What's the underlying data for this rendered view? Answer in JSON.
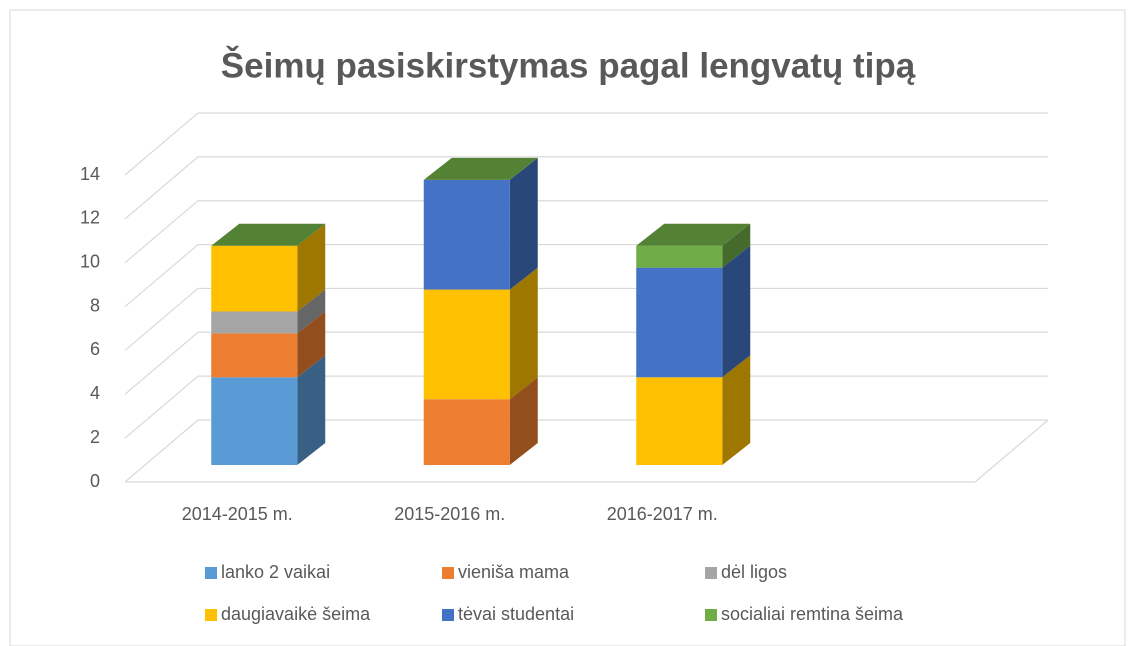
{
  "chart_data": {
    "type": "bar3d_stacked",
    "title": "Šeimų pasiskirstymas pagal lengvatų tipą",
    "categories": [
      "2014-2015 m.",
      "2015-2016 m.",
      "2016-2017 m."
    ],
    "series": [
      {
        "name": "lanko 2 vaikai",
        "color": "#5b9bd5",
        "values": [
          4,
          0,
          0
        ]
      },
      {
        "name": "vieniša mama",
        "color": "#ed7d31",
        "values": [
          2,
          3,
          0
        ]
      },
      {
        "name": "dėl ligos",
        "color": "#a5a5a5",
        "values": [
          1,
          0,
          0
        ]
      },
      {
        "name": "daugiavaikė šeima",
        "color": "#ffc000",
        "values": [
          3,
          5,
          4
        ]
      },
      {
        "name": "tėvai studentai",
        "color": "#4472c4",
        "values": [
          0,
          5,
          5
        ]
      },
      {
        "name": "socialiai remtina šeima",
        "color": "#70ad47",
        "values": [
          0,
          0,
          1
        ]
      }
    ],
    "ylim": [
      0,
      14
    ],
    "yticks": [
      0,
      2,
      4,
      6,
      8,
      10,
      12,
      14
    ],
    "grid": true,
    "legend": "bottom"
  }
}
